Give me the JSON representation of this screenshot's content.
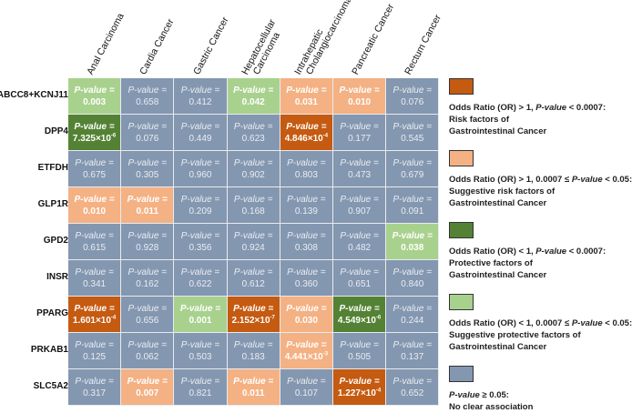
{
  "chart_data": {
    "type": "heatmap",
    "title": "",
    "columns": [
      "Anal Carcinoma",
      "Cardia Cancer",
      "Gastric Cancer",
      "Hepatocellular Carcinoma",
      "Intrahepatic Cholangiocarcinoma",
      "Pancreatic Cancer",
      "Rectum Cancer"
    ],
    "column_lines": [
      [
        "Anal Carcinoma"
      ],
      [
        "Cardia Cancer"
      ],
      [
        "Gastric Cancer"
      ],
      [
        "Hepatocellular",
        "Carcinoma"
      ],
      [
        "Intrahepatic",
        "Cholangiocarcinoma"
      ],
      [
        "Pancreatic Cancer"
      ],
      [
        "Rectum Cancer"
      ]
    ],
    "rows": [
      "ABCC8+KCNJ11",
      "DPP4",
      "ETFDH",
      "GLP1R",
      "GPD2",
      "INSR",
      "PPARG",
      "PRKAB1",
      "SLC5A2"
    ],
    "cell_label": "P-value =",
    "values": [
      [
        "0.003",
        "0.658",
        "0.412",
        "0.042",
        "0.031",
        "0.010",
        "0.076"
      ],
      [
        "7.325×10^-6",
        "0.076",
        "0.449",
        "0.623",
        "4.846×10^-4",
        "0.177",
        "0.545"
      ],
      [
        "0.675",
        "0.305",
        "0.960",
        "0.902",
        "0.803",
        "0.473",
        "0.679"
      ],
      [
        "0.010",
        "0.011",
        "0.209",
        "0.168",
        "0.139",
        "0.907",
        "0.091"
      ],
      [
        "0.615",
        "0.928",
        "0.356",
        "0.924",
        "0.308",
        "0.482",
        "0.038"
      ],
      [
        "0.341",
        "0.162",
        "0.622",
        "0.612",
        "0.360",
        "0.651",
        "0.840"
      ],
      [
        "1.601×10^-4",
        "0.656",
        "0.001",
        "2.152×10^-7",
        "0.030",
        "4.549×10^-6",
        "0.244"
      ],
      [
        "0.125",
        "0.062",
        "0.503",
        "0.183",
        "4.441×10^-3",
        "0.505",
        "0.137"
      ],
      [
        "0.317",
        "0.007",
        "0.821",
        "0.011",
        "0.107",
        "1.227×10^-4",
        "0.652"
      ]
    ],
    "categories_grid": [
      [
        "sug_protective",
        "none",
        "none",
        "sug_protective",
        "sug_risk",
        "sug_risk",
        "none"
      ],
      [
        "protective",
        "none",
        "none",
        "none",
        "risk",
        "none",
        "none"
      ],
      [
        "none",
        "none",
        "none",
        "none",
        "none",
        "none",
        "none"
      ],
      [
        "sug_risk",
        "sug_risk",
        "none",
        "none",
        "none",
        "none",
        "none"
      ],
      [
        "none",
        "none",
        "none",
        "none",
        "none",
        "none",
        "sug_protective"
      ],
      [
        "none",
        "none",
        "none",
        "none",
        "none",
        "none",
        "none"
      ],
      [
        "risk",
        "none",
        "sug_protective",
        "risk",
        "sug_risk",
        "protective",
        "none"
      ],
      [
        "none",
        "none",
        "none",
        "none",
        "sug_risk",
        "none",
        "none"
      ],
      [
        "none",
        "sug_risk",
        "none",
        "sug_risk",
        "none",
        "risk",
        "none"
      ]
    ],
    "colors": {
      "risk": "#c55a11",
      "sug_risk": "#f4b183",
      "protective": "#548235",
      "sug_protective": "#a9d18e",
      "none": "#8497b0"
    },
    "legend_position": "right",
    "legend": [
      {
        "key": "risk",
        "lines": [
          "Odds Ratio (OR) > 1, |P-value| < 0.0007:",
          "Risk factors of",
          "Gastrointestinal Cancer"
        ]
      },
      {
        "key": "sug_risk",
        "lines": [
          "Odds Ratio (OR) > 1, 0.0007 ≤ |P-value| < 0.05:",
          "Suggestive risk factors of",
          "Gastrointestinal Cancer"
        ]
      },
      {
        "key": "protective",
        "lines": [
          "Odds Ratio (OR) < 1, |P-value| < 0.0007:",
          "Protective factors of",
          "Gastrointestinal Cancer"
        ]
      },
      {
        "key": "sug_protective",
        "lines": [
          "Odds Ratio (OR) < 1, 0.0007 ≤ |P-value| < 0.05:",
          "Suggestive protective factors of",
          "Gastrointestinal Cancer"
        ]
      },
      {
        "key": "none",
        "lines": [
          "|P-value| ≥ 0.05:",
          "No clear association"
        ]
      }
    ]
  }
}
